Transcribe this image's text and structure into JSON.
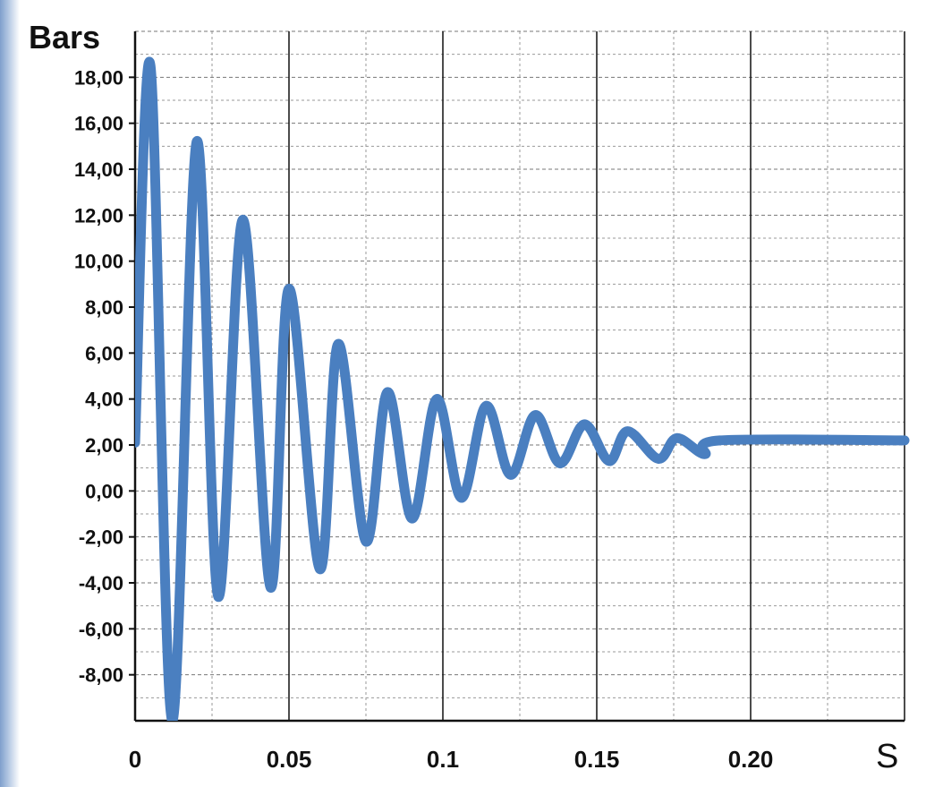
{
  "chart_data": {
    "type": "line",
    "title": "",
    "xlabel": "S",
    "ylabel": "Bars",
    "xlim": [
      0,
      0.25
    ],
    "ylim": [
      -10,
      20
    ],
    "x_ticks": [
      "0",
      "0.05",
      "0.1",
      "0.15",
      "0.20"
    ],
    "x_tick_values": [
      0,
      0.05,
      0.1,
      0.15,
      0.2
    ],
    "y_ticks": [
      "-8,00",
      "-6,00",
      "-4,00",
      "-2,00",
      "0,00",
      "2,00",
      "4,00",
      "6,00",
      "8,00",
      "10,00",
      "12,00",
      "14,00",
      "16,00",
      "18,00"
    ],
    "y_tick_values": [
      -8,
      -6,
      -4,
      -2,
      0,
      2,
      4,
      6,
      8,
      10,
      12,
      14,
      16,
      18
    ],
    "grid": true,
    "legend": "none",
    "line_color": "#4a7fc0",
    "series": [
      {
        "x": [
          0,
          0.005,
          0.012,
          0.02,
          0.027,
          0.035,
          0.044,
          0.05,
          0.06,
          0.066,
          0.075,
          0.082,
          0.09,
          0.098,
          0.106,
          0.114,
          0.122,
          0.13,
          0.138,
          0.146,
          0.154,
          0.16,
          0.17,
          0.176,
          0.185,
          0.19,
          0.25
        ],
        "y": [
          2.1,
          18.5,
          -10,
          15.2,
          -4.6,
          11.8,
          -4.2,
          8.8,
          -3.4,
          6.4,
          -2.2,
          4.3,
          -1.2,
          4.0,
          -0.3,
          3.7,
          0.7,
          3.3,
          1.2,
          2.9,
          1.3,
          2.6,
          1.4,
          2.3,
          1.6,
          2.2,
          2.2
        ]
      }
    ]
  }
}
